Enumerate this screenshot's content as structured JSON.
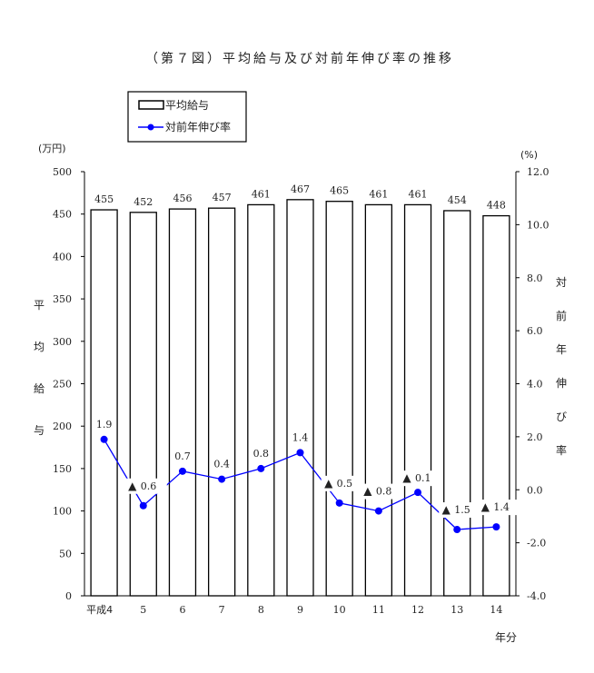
{
  "chart_data": {
    "type": "bar+line",
    "title": "（第７図）平均給与及び対前年伸び率の推移",
    "categories": [
      "平成4",
      "5",
      "6",
      "7",
      "8",
      "9",
      "10",
      "11",
      "12",
      "13",
      "14"
    ],
    "xlabel": "年分",
    "left_axis": {
      "unit": "(万円)",
      "label": "平均給与",
      "ylim": [
        0,
        500
      ],
      "ticks": [
        0,
        50,
        100,
        150,
        200,
        250,
        300,
        350,
        400,
        450,
        500
      ]
    },
    "right_axis": {
      "unit": "(%)",
      "label": "対前年伸び率",
      "ylim": [
        -4.0,
        12.0
      ],
      "ticks": [
        "-4.0",
        "-2.0",
        "0.0",
        "2.0",
        "4.0",
        "6.0",
        "8.0",
        "10.0",
        "12.0"
      ]
    },
    "series": [
      {
        "name": "平均給与",
        "type": "bar",
        "values": [
          455,
          452,
          456,
          457,
          461,
          467,
          465,
          461,
          461,
          454,
          448
        ],
        "color": "#ffffff"
      },
      {
        "name": "対前年伸び率",
        "type": "line",
        "values": [
          1.9,
          -0.6,
          0.7,
          0.4,
          0.8,
          1.4,
          -0.5,
          -0.8,
          -0.1,
          -1.5,
          -1.4
        ],
        "labels": [
          "1.9",
          "0.6",
          "0.7",
          "0.4",
          "0.8",
          "1.4",
          "0.5",
          "0.8",
          "0.1",
          "1.5",
          "1.4"
        ],
        "color": "#0000ff"
      }
    ],
    "negative_marker": "▲",
    "legend": {
      "placement": "top-left",
      "items": [
        "平均給与",
        "対前年伸び率"
      ]
    },
    "grid": false
  }
}
